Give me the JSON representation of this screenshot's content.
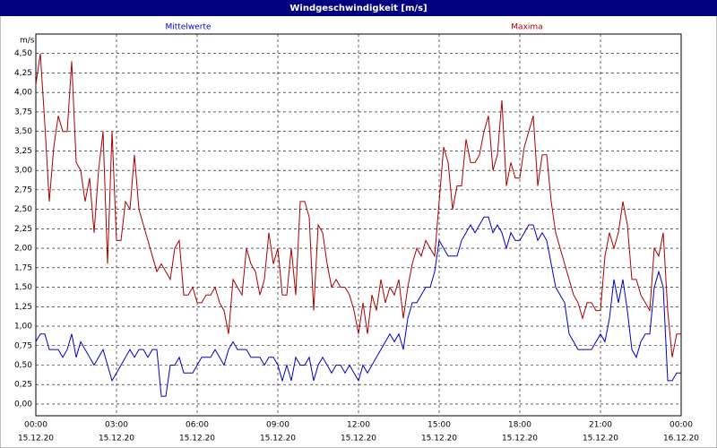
{
  "chart_data": {
    "type": "line",
    "title": "Windgeschwindigkeit [m/s]",
    "ylabel": "m/s",
    "grid": true,
    "xlim": [
      0,
      1440
    ],
    "xticks": [
      {
        "value": 0,
        "label": "00:00",
        "date": "15.12.20"
      },
      {
        "value": 180,
        "label": "03:00",
        "date": "15.12.20"
      },
      {
        "value": 360,
        "label": "06:00",
        "date": "15.12.20"
      },
      {
        "value": 540,
        "label": "09:00",
        "date": "15.12.20"
      },
      {
        "value": 720,
        "label": "12:00",
        "date": "15.12.20"
      },
      {
        "value": 900,
        "label": "15:00",
        "date": "15.12.20"
      },
      {
        "value": 1080,
        "label": "18:00",
        "date": "15.12.20"
      },
      {
        "value": 1260,
        "label": "21:00",
        "date": "15.12.20"
      },
      {
        "value": 1440,
        "label": "00:00",
        "date": "16.12.20"
      }
    ],
    "ylim": [
      -0.15,
      4.75
    ],
    "yticks": [
      {
        "value": 0,
        "label": "0,00"
      },
      {
        "value": 0.25,
        "label": "0,25"
      },
      {
        "value": 0.5,
        "label": "0,50"
      },
      {
        "value": 0.75,
        "label": "0,75"
      },
      {
        "value": 1,
        "label": "1,00"
      },
      {
        "value": 1.25,
        "label": "1,25"
      },
      {
        "value": 1.5,
        "label": "1,50"
      },
      {
        "value": 1.75,
        "label": "1,75"
      },
      {
        "value": 2,
        "label": "2,00"
      },
      {
        "value": 2.25,
        "label": "2,25"
      },
      {
        "value": 2.5,
        "label": "2,50"
      },
      {
        "value": 2.75,
        "label": "2,75"
      },
      {
        "value": 3,
        "label": "3,00"
      },
      {
        "value": 3.25,
        "label": "3,25"
      },
      {
        "value": 3.5,
        "label": "3,50"
      },
      {
        "value": 3.75,
        "label": "3,75"
      },
      {
        "value": 4,
        "label": "4,00"
      },
      {
        "value": 4.25,
        "label": "4,25"
      },
      {
        "value": 4.5,
        "label": "4,50"
      }
    ],
    "x": [
      0,
      10,
      20,
      30,
      40,
      50,
      60,
      70,
      80,
      90,
      100,
      110,
      120,
      130,
      140,
      150,
      160,
      170,
      180,
      190,
      200,
      210,
      220,
      230,
      240,
      250,
      260,
      270,
      280,
      290,
      300,
      310,
      320,
      330,
      340,
      350,
      360,
      370,
      380,
      390,
      400,
      410,
      420,
      430,
      440,
      450,
      460,
      470,
      480,
      490,
      500,
      510,
      520,
      530,
      540,
      550,
      560,
      570,
      580,
      590,
      600,
      610,
      620,
      630,
      640,
      650,
      660,
      670,
      680,
      690,
      700,
      710,
      720,
      730,
      740,
      750,
      760,
      770,
      780,
      790,
      800,
      810,
      820,
      830,
      840,
      850,
      860,
      870,
      880,
      890,
      900,
      910,
      920,
      930,
      940,
      950,
      960,
      970,
      980,
      990,
      1000,
      1010,
      1020,
      1030,
      1040,
      1050,
      1060,
      1070,
      1080,
      1090,
      1100,
      1110,
      1120,
      1130,
      1140,
      1150,
      1160,
      1170,
      1180,
      1190,
      1200,
      1210,
      1220,
      1230,
      1240,
      1250,
      1260,
      1270,
      1280,
      1290,
      1300,
      1310,
      1320,
      1330,
      1340,
      1350,
      1360,
      1370,
      1380,
      1390,
      1400,
      1410,
      1420,
      1430,
      1440
    ],
    "series": [
      {
        "name": "Mittelwerte",
        "color": "#0000cc",
        "values": [
          0.8,
          0.9,
          0.9,
          0.7,
          0.7,
          0.7,
          0.6,
          0.7,
          0.9,
          0.6,
          0.8,
          0.7,
          0.6,
          0.5,
          0.6,
          0.7,
          0.5,
          0.3,
          0.4,
          0.5,
          0.6,
          0.7,
          0.6,
          0.7,
          0.7,
          0.6,
          0.7,
          0.7,
          0.1,
          0.1,
          0.5,
          0.5,
          0.6,
          0.4,
          0.4,
          0.4,
          0.5,
          0.6,
          0.6,
          0.6,
          0.7,
          0.6,
          0.5,
          0.7,
          0.8,
          0.7,
          0.7,
          0.7,
          0.6,
          0.6,
          0.6,
          0.5,
          0.6,
          0.6,
          0.5,
          0.3,
          0.5,
          0.3,
          0.6,
          0.5,
          0.5,
          0.6,
          0.3,
          0.5,
          0.6,
          0.5,
          0.4,
          0.5,
          0.5,
          0.4,
          0.5,
          0.4,
          0.3,
          0.5,
          0.4,
          0.5,
          0.6,
          0.7,
          0.8,
          0.9,
          0.8,
          0.9,
          0.7,
          1.1,
          1.3,
          1.3,
          1.4,
          1.5,
          1.5,
          1.7,
          2.1,
          2.0,
          1.9,
          1.9,
          1.9,
          2.1,
          2.2,
          2.3,
          2.2,
          2.3,
          2.4,
          2.4,
          2.2,
          2.3,
          2.2,
          2.0,
          2.2,
          2.1,
          2.1,
          2.2,
          2.3,
          2.3,
          2.1,
          2.2,
          2.1,
          1.8,
          1.5,
          1.4,
          1.3,
          0.9,
          0.8,
          0.7,
          0.7,
          0.7,
          0.7,
          0.8,
          0.9,
          0.8,
          1.1,
          1.6,
          1.3,
          1.6,
          1.2,
          0.7,
          0.6,
          0.8,
          0.9,
          0.9,
          1.5,
          1.7,
          1.5,
          0.3,
          0.3,
          0.4,
          0.4
        ]
      },
      {
        "name": "Maxima",
        "color": "#aa0000",
        "values": [
          4.1,
          4.5,
          3.6,
          2.6,
          3.3,
          3.7,
          3.5,
          3.5,
          4.4,
          3.1,
          3.0,
          2.6,
          2.9,
          2.2,
          3.0,
          3.5,
          1.8,
          3.5,
          2.1,
          2.1,
          2.6,
          2.5,
          3.2,
          2.5,
          2.3,
          2.1,
          1.9,
          1.7,
          1.8,
          1.7,
          1.6,
          2.0,
          2.1,
          1.4,
          1.4,
          1.5,
          1.3,
          1.3,
          1.4,
          1.4,
          1.5,
          1.3,
          1.2,
          0.9,
          1.6,
          1.5,
          1.4,
          2.0,
          1.8,
          1.7,
          1.4,
          1.6,
          2.2,
          1.8,
          2.0,
          1.4,
          1.4,
          2.0,
          1.4,
          2.6,
          2.6,
          2.4,
          1.2,
          2.3,
          2.2,
          1.8,
          1.5,
          1.6,
          1.5,
          1.5,
          1.4,
          1.2,
          0.9,
          1.3,
          0.9,
          1.4,
          1.2,
          1.6,
          1.3,
          1.5,
          1.4,
          1.6,
          1.1,
          1.5,
          1.8,
          2.0,
          1.9,
          2.1,
          2.0,
          1.9,
          2.6,
          3.3,
          3.1,
          2.5,
          2.8,
          2.8,
          3.4,
          3.1,
          3.1,
          3.2,
          3.5,
          3.7,
          3.0,
          3.2,
          3.9,
          2.8,
          3.1,
          2.9,
          2.9,
          3.3,
          3.5,
          3.7,
          2.8,
          3.2,
          3.2,
          2.6,
          2.2,
          2.0,
          1.8,
          1.6,
          1.4,
          1.3,
          1.1,
          1.3,
          1.3,
          1.2,
          1.2,
          1.9,
          2.2,
          2.0,
          2.2,
          2.6,
          2.3,
          1.6,
          1.6,
          1.4,
          1.3,
          1.2,
          2.0,
          1.9,
          2.2,
          1.2,
          0.6,
          0.9,
          0.9
        ]
      }
    ]
  }
}
